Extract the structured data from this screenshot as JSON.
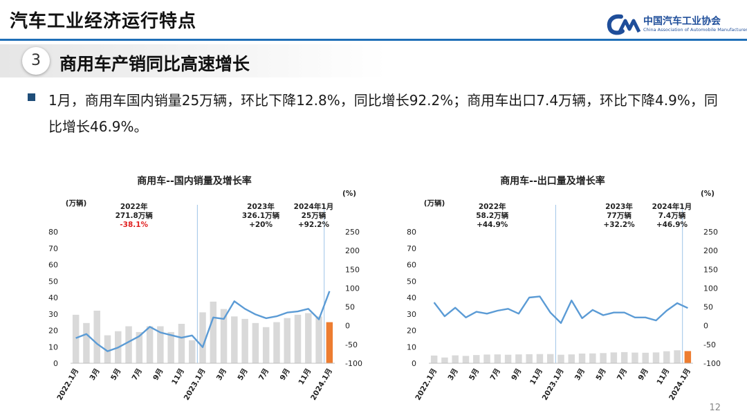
{
  "header": {
    "title": "汽车工业经济运行特点",
    "logo_cn": "中国汽车工业协会",
    "logo_en": "China Association of Automobile Manufacturers",
    "accent_color": "#1f6fb8"
  },
  "section": {
    "number": "3",
    "title": "商用车产销同比高速增长"
  },
  "bullet_text": "1月，商用车国内销量25万辆，环比下降12.8%，同比增长92.2%；商用车出口7.4万辆，环比下降4.9%，同比增长46.9%。",
  "page_number": "12",
  "chart_data": [
    {
      "type": "bar+line",
      "title": "商用车--国内销量及增长率",
      "left_axis_unit": "(万辆)",
      "right_axis_unit": "(%)",
      "ylim": [
        0,
        80
      ],
      "y2lim": [
        -100,
        250
      ],
      "y_ticks": [
        0,
        10,
        20,
        30,
        40,
        50,
        60,
        70,
        80
      ],
      "y2_ticks": [
        -100,
        -50,
        0,
        50,
        100,
        150,
        200,
        250
      ],
      "x_labels": [
        "2022.1月",
        "3月",
        "5月",
        "7月",
        "9月",
        "11月",
        "2023.1月",
        "3月",
        "5月",
        "7月",
        "9月",
        "11月",
        "2024.1月"
      ],
      "bars": [
        29.5,
        24.5,
        32,
        17,
        19.5,
        22.5,
        19,
        22.5,
        22.5,
        19,
        24,
        14,
        31,
        37.5,
        33,
        28.5,
        27,
        24.5,
        22,
        25,
        27.5,
        29.5,
        30.5,
        28.5,
        25
      ],
      "highlight_last_bar": true,
      "line_name": "增长率",
      "line": [
        -33,
        -22,
        -48,
        -68,
        -58,
        -43,
        -28,
        -3,
        -18,
        -25,
        -32,
        -26,
        -57,
        22,
        18,
        65,
        45,
        30,
        20,
        25,
        35,
        38,
        45,
        17,
        92
      ],
      "annotations": [
        {
          "year": "2022年",
          "value": "271.8万辆",
          "growth": "-38.1%",
          "growth_color": "#e02020"
        },
        {
          "year": "2023年",
          "value": "326.1万辆",
          "growth": "+20%",
          "growth_color": "#222222"
        },
        {
          "year": "2024年1月",
          "value": "25万辆",
          "growth": "+92.2%",
          "growth_color": "#222222"
        }
      ],
      "colors": {
        "bar": "#d9d9d9",
        "highlight": "#ed7d31",
        "line": "#5b9bd5"
      }
    },
    {
      "type": "bar+line",
      "title": "商用车--出口量及增长率",
      "left_axis_unit": "(万辆)",
      "right_axis_unit": "(%)",
      "ylim": [
        0,
        80
      ],
      "y2lim": [
        -100,
        250
      ],
      "y_ticks": [
        0,
        10,
        20,
        30,
        40,
        50,
        60,
        70,
        80
      ],
      "y2_ticks": [
        -100,
        -50,
        0,
        50,
        100,
        150,
        200,
        250
      ],
      "x_labels": [
        "2022.1月",
        "3月",
        "5月",
        "7月",
        "9月",
        "11月",
        "2023.1月",
        "3月",
        "5月",
        "7月",
        "9月",
        "11月",
        "2024.1月"
      ],
      "bars": [
        4.7,
        3.5,
        4.8,
        4.5,
        5,
        5.3,
        5.4,
        5.2,
        5.4,
        5.5,
        5.6,
        5.6,
        5.2,
        5.4,
        5.9,
        6,
        6.2,
        6.6,
        6.8,
        6.5,
        6.4,
        6.6,
        7.3,
        7.9,
        7.4
      ],
      "highlight_last_bar": true,
      "line_name": "增长率",
      "line": [
        62,
        25,
        48,
        22,
        37,
        32,
        40,
        45,
        32,
        75,
        78,
        35,
        7,
        67,
        20,
        42,
        28,
        35,
        35,
        22,
        22,
        14,
        40,
        60,
        47
      ],
      "annotations": [
        {
          "year": "2022年",
          "value": "58.2万辆",
          "growth": "+44.9%",
          "growth_color": "#222222"
        },
        {
          "year": "2023年",
          "value": "77万辆",
          "growth": "+32.2%",
          "growth_color": "#222222"
        },
        {
          "year": "2024年1月",
          "value": "7.4万辆",
          "growth": "+46.9%",
          "growth_color": "#222222"
        }
      ],
      "colors": {
        "bar": "#d9d9d9",
        "highlight": "#ed7d31",
        "line": "#5b9bd5"
      }
    }
  ]
}
